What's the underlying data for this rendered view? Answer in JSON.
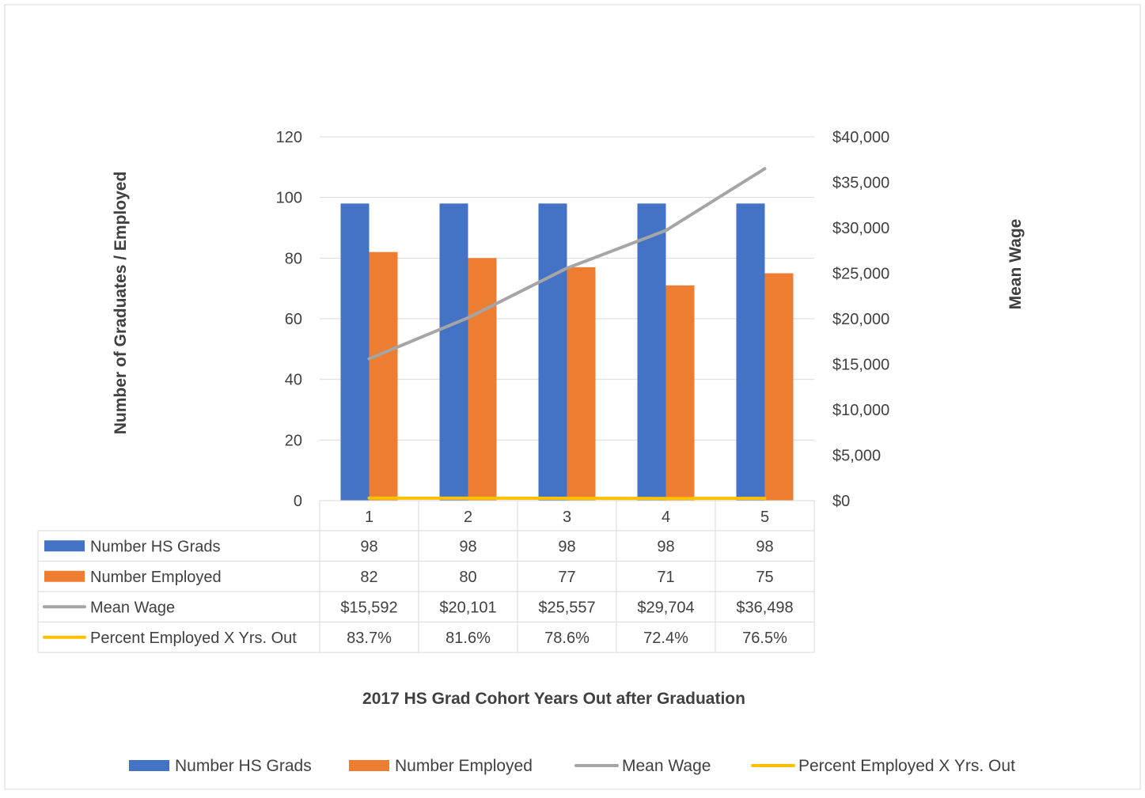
{
  "chart_data": {
    "type": "bar",
    "categories": [
      "1",
      "2",
      "3",
      "4",
      "5"
    ],
    "series": [
      {
        "name": "Number HS Grads",
        "kind": "bar",
        "axis": "left",
        "color": "#4472c4",
        "values": [
          98,
          98,
          98,
          98,
          98
        ]
      },
      {
        "name": "Number Employed",
        "kind": "bar",
        "axis": "left",
        "color": "#ed7d31",
        "values": [
          82,
          80,
          77,
          71,
          75
        ]
      },
      {
        "name": "Mean Wage",
        "kind": "line",
        "axis": "right",
        "color": "#a5a5a5",
        "values": [
          15592,
          20101,
          25557,
          29704,
          36498
        ]
      },
      {
        "name": "Percent Employed X Yrs. Out",
        "kind": "line",
        "axis": "left",
        "color": "#ffc000",
        "values": [
          0.837,
          0.816,
          0.786,
          0.724,
          0.765
        ]
      }
    ],
    "table_rows": [
      {
        "label": "Number HS Grads",
        "cells": [
          "98",
          "98",
          "98",
          "98",
          "98"
        ]
      },
      {
        "label": "Number Employed",
        "cells": [
          "82",
          "80",
          "77",
          "71",
          "75"
        ]
      },
      {
        "label": "Mean Wage",
        "cells": [
          "$15,592",
          "$20,101",
          "$25,557",
          "$29,704",
          "$36,498"
        ]
      },
      {
        "label": "Percent Employed X Yrs. Out",
        "cells": [
          "83.7%",
          "81.6%",
          "78.6%",
          "72.4%",
          "76.5%"
        ]
      }
    ],
    "y_left": {
      "label": "Number of Graduates / Employed",
      "ticks": [
        "0",
        "20",
        "40",
        "60",
        "80",
        "100",
        "120"
      ],
      "range": [
        0,
        120
      ]
    },
    "y_right": {
      "label": "Mean Wage",
      "ticks": [
        "$0",
        "$5,000",
        "$10,000",
        "$15,000",
        "$20,000",
        "$25,000",
        "$30,000",
        "$35,000",
        "$40,000"
      ],
      "range": [
        0,
        40000
      ]
    },
    "xlabel": "2017 HS Grad Cohort Years Out after Graduation",
    "grid": true,
    "legend_placement": "bottom"
  }
}
